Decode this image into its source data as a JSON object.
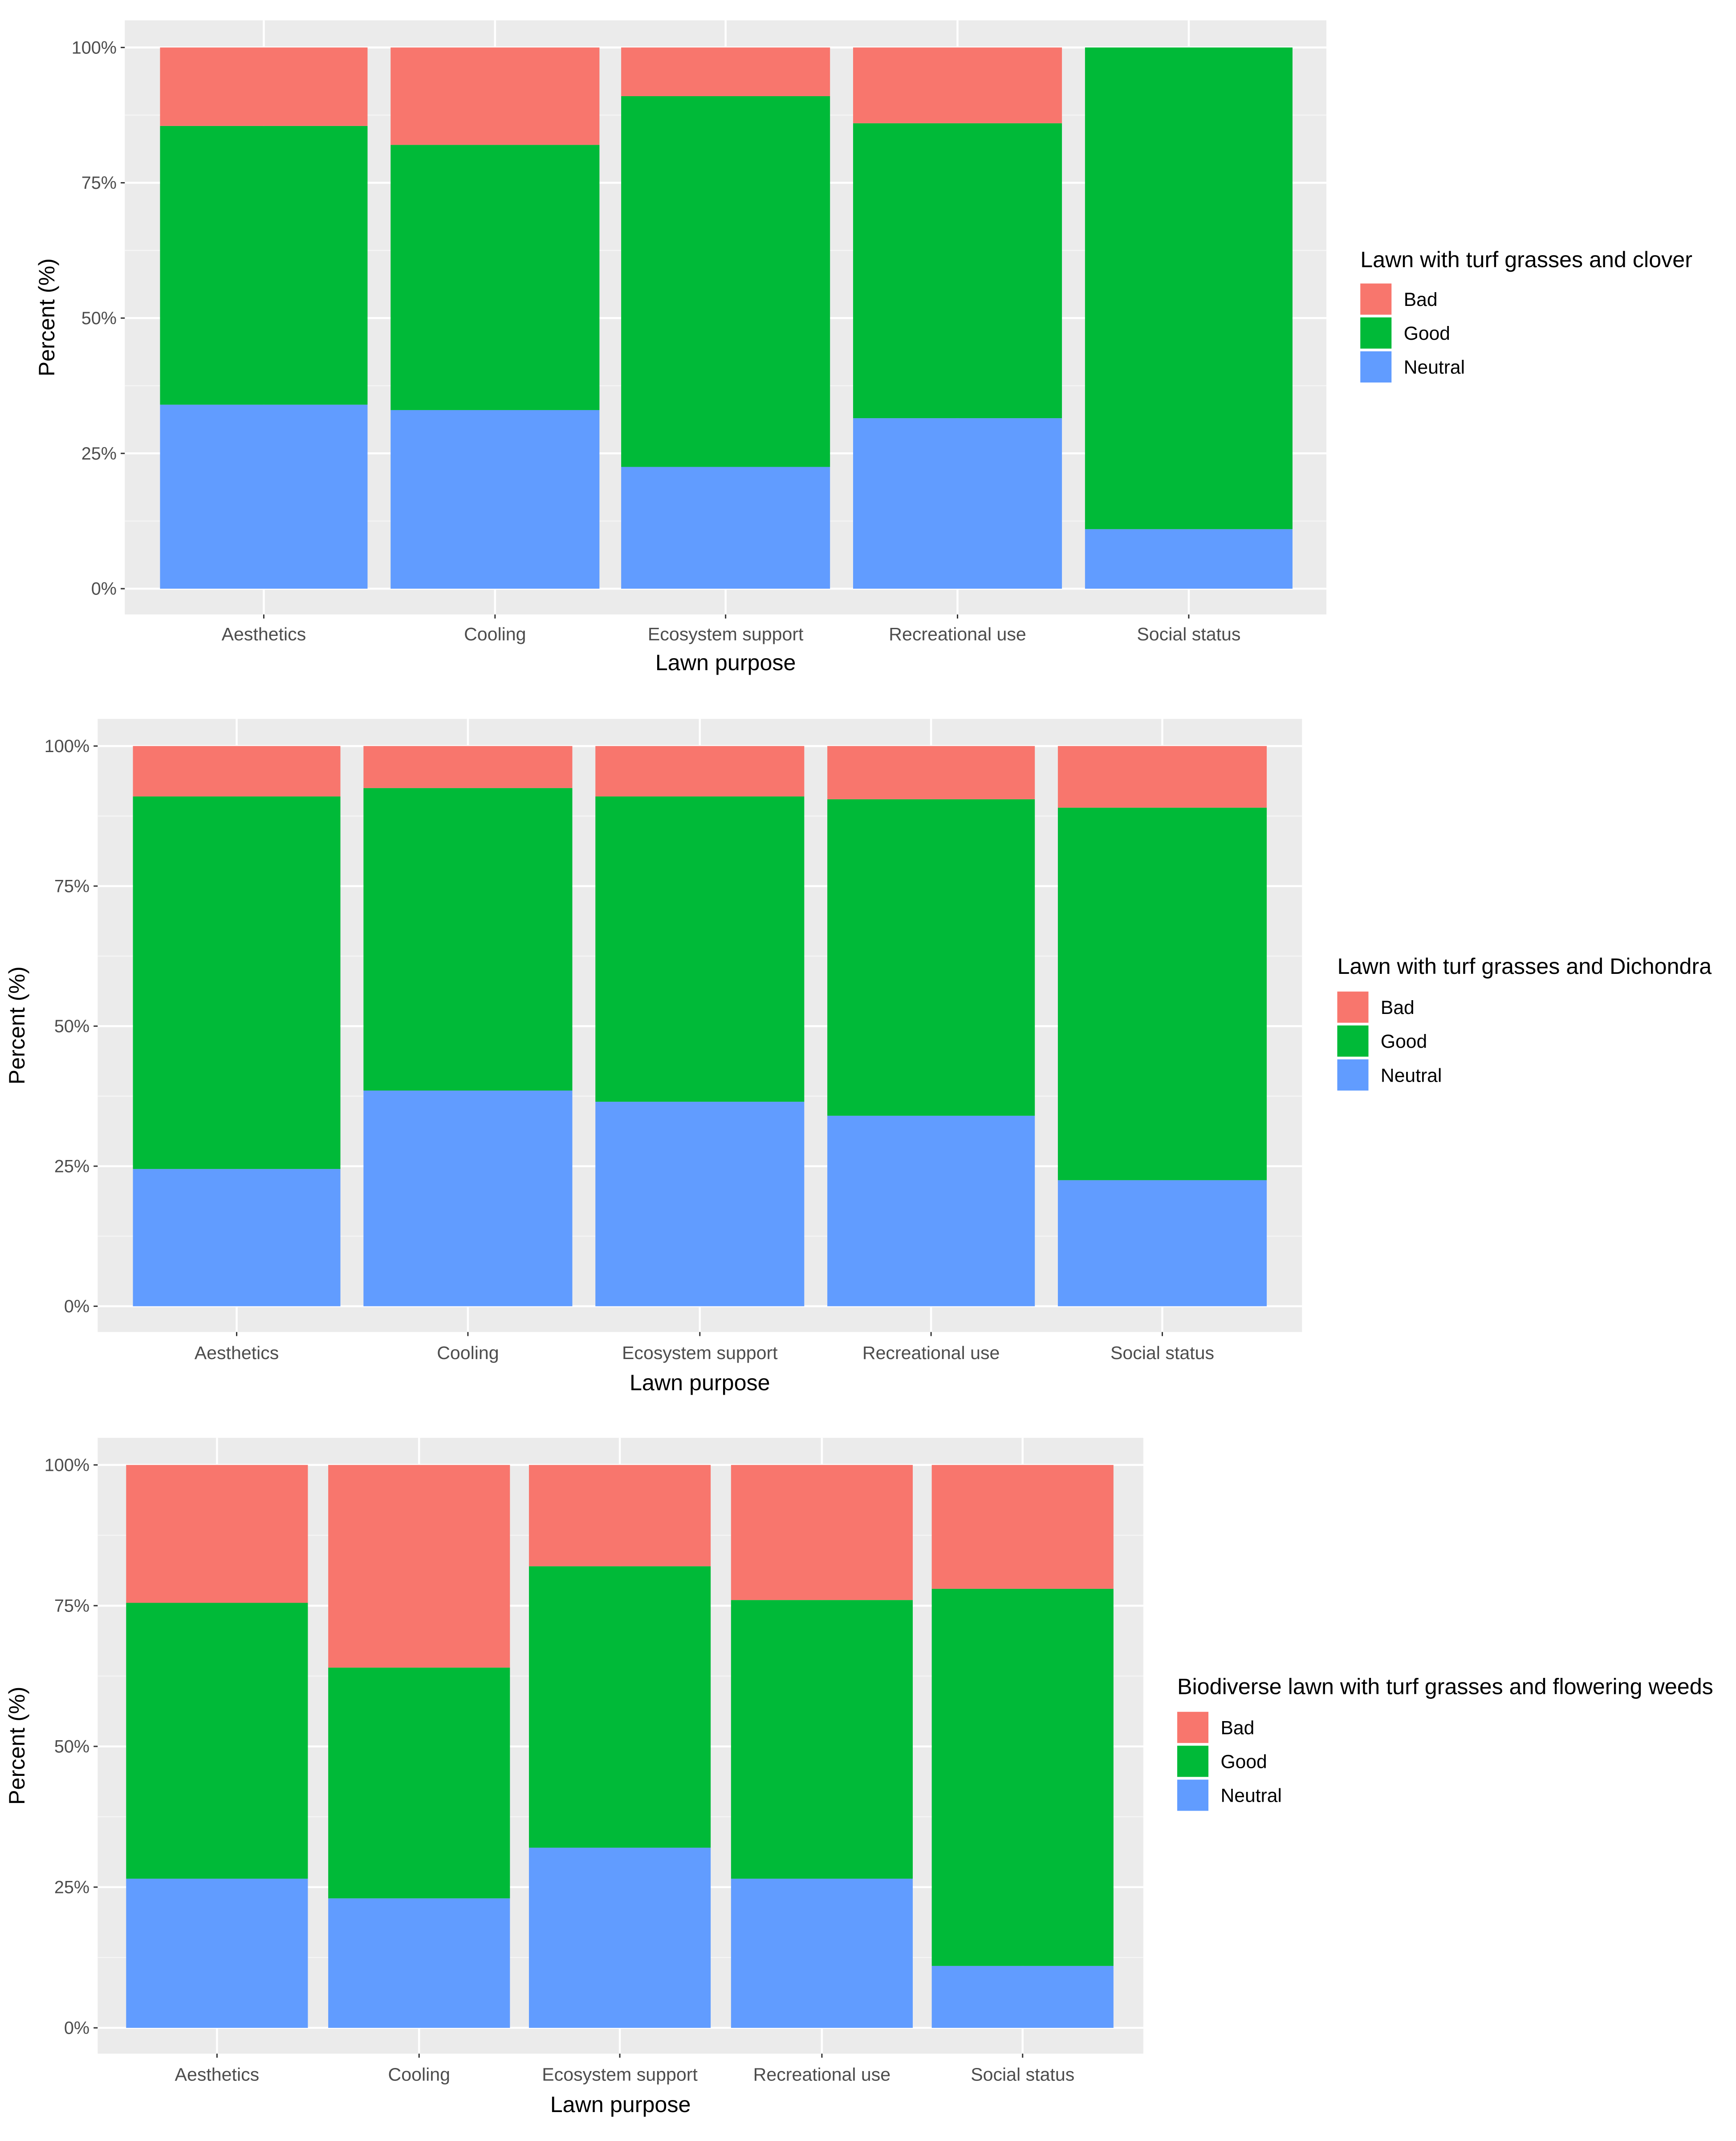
{
  "chart_data": [
    {
      "type": "bar",
      "stacked": "percent",
      "categories": [
        "Aesthetics",
        "Cooling",
        "Ecosystem support",
        "Recreational use",
        "Social status"
      ],
      "series": [
        {
          "name": "Neutral",
          "values": [
            34,
            33,
            22.5,
            31.5,
            11
          ]
        },
        {
          "name": "Good",
          "values": [
            51.5,
            49,
            68.5,
            54.5,
            89
          ]
        },
        {
          "name": "Bad",
          "values": [
            14.5,
            18,
            9,
            14,
            0
          ]
        }
      ],
      "xlabel": "Lawn purpose",
      "ylabel": "Percent (%)",
      "ylim": [
        0,
        100
      ],
      "yticks": [
        "0%",
        "25%",
        "50%",
        "75%",
        "100%"
      ],
      "legend_title": "Lawn with turf grasses and clover",
      "legend_labels": [
        "Bad",
        "Good",
        "Neutral"
      ],
      "legend_position": "right",
      "grid": true
    },
    {
      "type": "bar",
      "stacked": "percent",
      "categories": [
        "Aesthetics",
        "Cooling",
        "Ecosystem support",
        "Recreational use",
        "Social status"
      ],
      "series": [
        {
          "name": "Neutral",
          "values": [
            24.5,
            38.5,
            36.5,
            34,
            22.5
          ]
        },
        {
          "name": "Good",
          "values": [
            66.5,
            54,
            54.5,
            56.5,
            66.5
          ]
        },
        {
          "name": "Bad",
          "values": [
            9,
            7.5,
            9,
            9.5,
            11
          ]
        }
      ],
      "xlabel": "Lawn purpose",
      "ylabel": "Percent (%)",
      "ylim": [
        0,
        100
      ],
      "yticks": [
        "0%",
        "25%",
        "50%",
        "75%",
        "100%"
      ],
      "legend_title": "Lawn with turf grasses and Dichondra",
      "legend_labels": [
        "Bad",
        "Good",
        "Neutral"
      ],
      "legend_position": "right",
      "grid": true
    },
    {
      "type": "bar",
      "stacked": "percent",
      "categories": [
        "Aesthetics",
        "Cooling",
        "Ecosystem support",
        "Recreational use",
        "Social status"
      ],
      "series": [
        {
          "name": "Neutral",
          "values": [
            26.5,
            23,
            32,
            26.5,
            11
          ]
        },
        {
          "name": "Good",
          "values": [
            49,
            41,
            50,
            49.5,
            67
          ]
        },
        {
          "name": "Bad",
          "values": [
            24.5,
            36,
            18,
            24,
            22
          ]
        }
      ],
      "xlabel": "Lawn purpose",
      "ylabel": "Percent (%)",
      "ylim": [
        0,
        100
      ],
      "yticks": [
        "0%",
        "25%",
        "50%",
        "75%",
        "100%"
      ],
      "legend_title": "Biodiverse lawn with turf grasses and flowering weeds",
      "legend_labels": [
        "Bad",
        "Good",
        "Neutral"
      ],
      "legend_position": "right",
      "grid": true
    }
  ],
  "colors": {
    "Bad": "#F8766D",
    "Good": "#00BA38",
    "Neutral": "#619CFF",
    "panel": "#EBEBEB",
    "gridline": "#FFFFFF",
    "axis_text": "#4D4D4D",
    "title_text": "#000000"
  }
}
